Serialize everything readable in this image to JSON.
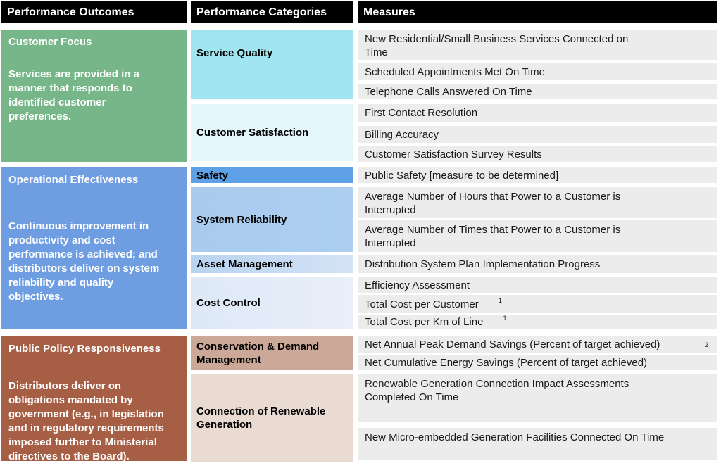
{
  "header": {
    "columns": [
      "Performance Outcomes",
      "Performance Categories",
      "Measures"
    ]
  },
  "colors": {
    "header_bg": "#000000",
    "header_text": "#ffffff",
    "measure_row_bg": "#ececec",
    "measure_text": "#1a1a1a",
    "outcome_text": "#ffffff",
    "category_text": "#000000"
  },
  "sections": [
    {
      "id": "customer-focus",
      "outcome": {
        "title": "Customer Focus",
        "description": "Services are provided in a manner that responds to identified customer preferences.",
        "color": "#77b689"
      },
      "categories": [
        {
          "label": "Service Quality",
          "color": "#a0e5f0"
        },
        {
          "label": "Customer Satisfaction",
          "color": "#e3f6f9"
        }
      ],
      "measures": [
        {
          "text": "New Residential/Small Business Services Connected on Time"
        },
        {
          "text": "Scheduled Appointments Met On Time"
        },
        {
          "text": "Telephone Calls Answered On Time"
        },
        {
          "text": "First Contact Resolution"
        },
        {
          "text": "Billing Accuracy"
        },
        {
          "text": "Customer Satisfaction Survey Results"
        }
      ]
    },
    {
      "id": "operational-effectiveness",
      "outcome": {
        "title": "Operational Effectiveness",
        "description": "Continuous improvement in productivity and cost performance is achieved; and distributors deliver on system reliability and quality objectives.",
        "color": "#6f9de1"
      },
      "categories": [
        {
          "label": "Safety",
          "color": "#5ea1e6"
        },
        {
          "label": "System Reliability",
          "color": "#a9cbee",
          "color2": "#abcef1"
        },
        {
          "label": "Asset Management",
          "color": "#b8d3f0",
          "color2": "#d5e3f6"
        },
        {
          "label": "Cost Control",
          "color": "#dde8f7",
          "color2": "#e9eff9"
        }
      ],
      "measures": [
        {
          "text": "Public Safety [measure to be determined]"
        },
        {
          "text": "Average Number of Hours that Power to a Customer is Interrupted"
        },
        {
          "text": "Average Number of Times that Power to a Customer is Interrupted"
        },
        {
          "text": "Distribution System Plan Implementation Progress"
        },
        {
          "text": "Efficiency Assessment"
        },
        {
          "text": "Total Cost per Customer",
          "footnote": "1",
          "footnote_style": "inline"
        },
        {
          "text": "Total Cost per Km of Line",
          "footnote": "1",
          "footnote_style": "inline"
        }
      ]
    },
    {
      "id": "public-policy-responsiveness",
      "outcome": {
        "title": "Public Policy Responsiveness",
        "description": "Distributors deliver on obligations mandated by government (e.g., in legislation and in regulatory requirements imposed further to Ministerial directives to the Board).",
        "color": "#a65e44"
      },
      "categories": [
        {
          "label": "Conservation & Demand Management",
          "color": "#cba897"
        },
        {
          "label": "Connection of Renewable Generation",
          "color": "#e9dbd2"
        }
      ],
      "measures": [
        {
          "text": "Net Annual Peak Demand Savings (Percent of target achieved)",
          "footnote": "2",
          "footnote_style": "right"
        },
        {
          "text": "Net Cumulative Energy Savings (Percent of target achieved)"
        },
        {
          "text": "Renewable Generation Connection Impact Assessments Completed On Time"
        },
        {
          "text": "New Micro-embedded Generation Facilities Connected On Time"
        }
      ]
    }
  ]
}
